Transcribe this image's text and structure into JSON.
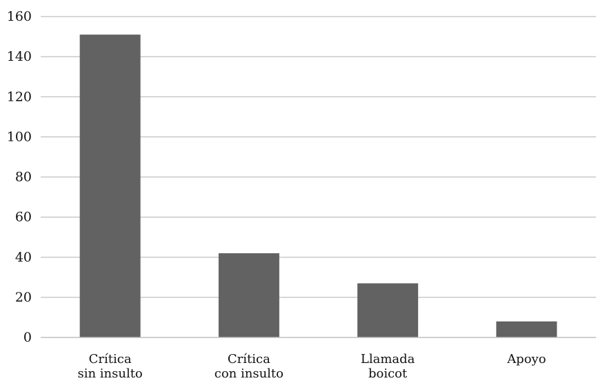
{
  "chart_data": {
    "type": "bar",
    "title": "",
    "xlabel": "",
    "ylabel": "",
    "categories": [
      [
        "Crítica",
        "sin insulto"
      ],
      [
        "Crítica",
        "con insulto"
      ],
      [
        "Llamada",
        "boicot"
      ],
      [
        "Apoyo"
      ]
    ],
    "values": [
      151,
      42,
      27,
      8
    ],
    "ylim": [
      0,
      160
    ],
    "yticks": [
      0,
      20,
      40,
      60,
      80,
      100,
      120,
      140,
      160
    ],
    "grid": true,
    "legend": "none",
    "colors": {
      "bar": "#626262",
      "grid": "#bfbfbf",
      "axis": "#bfbfbf",
      "text": "#111111"
    }
  }
}
